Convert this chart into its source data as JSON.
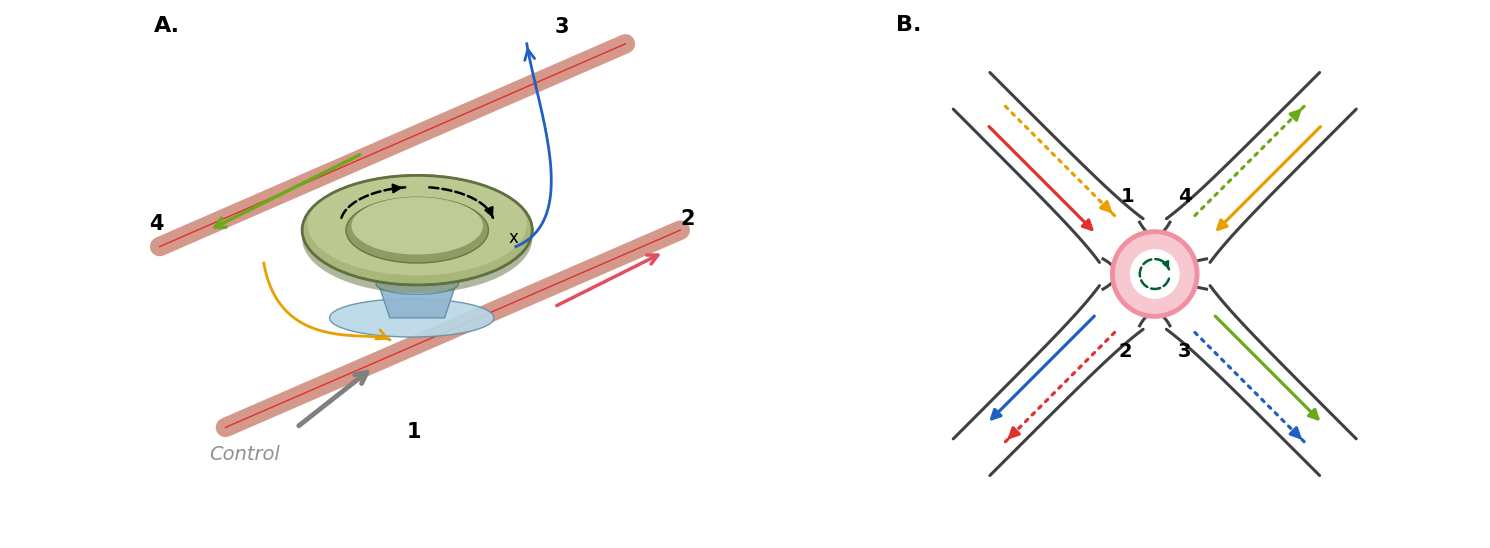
{
  "fig_width": 14.9,
  "fig_height": 5.48,
  "background_color": "#ffffff",
  "panel_A_label": "A.",
  "panel_B_label": "B.",
  "label_fontsize": 16,
  "label_fontweight": "bold",
  "colors": {
    "fiber_salmon": "#d4998a",
    "fiber_red_line": "#e03030",
    "green_arrow": "#6aaa1a",
    "orange_arrow": "#e8a000",
    "blue_arrow": "#2060c0",
    "red_arrow": "#e03030",
    "gray_arrow": "#888888",
    "ring_green_light": "#c8d4a0",
    "ring_green_mid": "#a8b878",
    "ring_green_dark": "#607040",
    "pedestal_blue_light": "#b8d8e8",
    "pedestal_blue_mid": "#90b8d0",
    "pedestal_blue_dark": "#6090a8",
    "ring_pink": "#f090a0",
    "ring_pink_fill": "#f8c8d0",
    "ring_dashed_green": "#006030",
    "waveguide_dark": "#404040",
    "waveguide_fill": "#ffffff"
  }
}
